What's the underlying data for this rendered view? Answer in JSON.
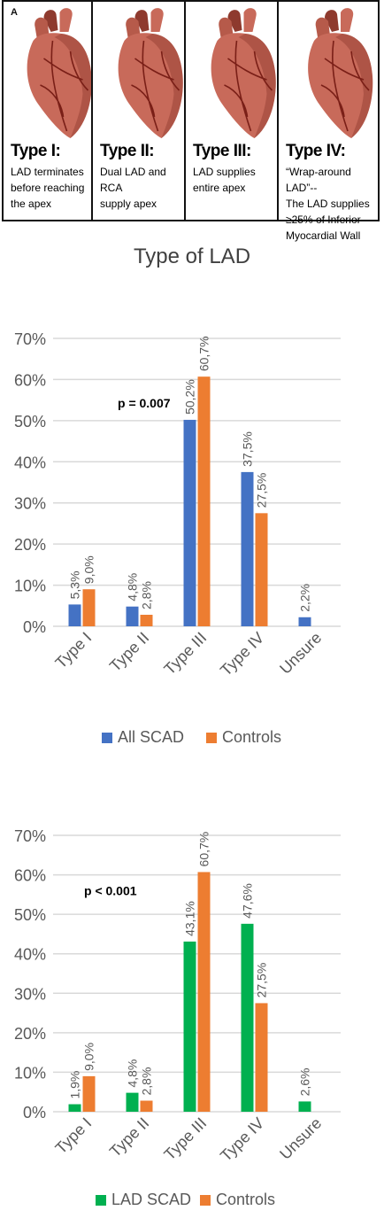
{
  "figure_label": "A",
  "lad_types": [
    {
      "title": "Type I:",
      "description": "LAD terminates\nbefore reaching\nthe apex"
    },
    {
      "title": "Type II:",
      "description": "Dual LAD and RCA\nsupply apex"
    },
    {
      "title": "Type III:",
      "description": "LAD supplies\nentire apex"
    },
    {
      "title": "Type IV:",
      "description": "“Wrap-around LAD”--\nThe LAD supplies\n≥25% of Inferior\nMyocardial Wall"
    }
  ],
  "colors": {
    "all_scad": "#4472C4",
    "lad_scad": "#00B050",
    "controls": "#ED7D31",
    "gridline": "#D9D9D9",
    "axis_text": "#595959",
    "heart_fill": "#C86A5A",
    "heart_dark": "#8E3A2E",
    "vessel": "#7A1F17"
  },
  "chart_data": [
    {
      "type": "bar",
      "title": "Type of LAD",
      "categories": [
        "Type I",
        "Type II",
        "Type III",
        "Type IV",
        "Unsure"
      ],
      "series": [
        {
          "name": "All SCAD",
          "values": [
            5.3,
            4.8,
            50.2,
            37.5,
            2.2
          ],
          "labels": [
            "5,3%",
            "4,8%",
            "50,2%",
            "37,5%",
            "2,2%"
          ]
        },
        {
          "name": "Controls",
          "values": [
            9.0,
            2.8,
            60.7,
            27.5,
            null
          ],
          "labels": [
            "9,0%",
            "2,8%",
            "60,7%",
            "27,5%",
            ""
          ]
        }
      ],
      "annotation": "p = 0.007",
      "yticks": [
        "0%",
        "10%",
        "20%",
        "30%",
        "40%",
        "50%",
        "60%",
        "70%"
      ],
      "ylim": [
        0,
        70
      ],
      "grid": true,
      "legend_position": "bottom"
    },
    {
      "type": "bar",
      "title": "",
      "categories": [
        "Type I",
        "Type II",
        "Type III",
        "Type IV",
        "Unsure"
      ],
      "series": [
        {
          "name": "LAD SCAD",
          "values": [
            1.9,
            4.8,
            43.1,
            47.6,
            2.6
          ],
          "labels": [
            "1,9%",
            "4,8%",
            "43,1%",
            "47,6%",
            "2,6%"
          ]
        },
        {
          "name": "Controls",
          "values": [
            9.0,
            2.8,
            60.7,
            27.5,
            null
          ],
          "labels": [
            "9,0%",
            "2,8%",
            "60,7%",
            "27,5%",
            ""
          ]
        }
      ],
      "annotation": "p < 0.001",
      "yticks": [
        "0%",
        "10%",
        "20%",
        "30%",
        "40%",
        "50%",
        "60%",
        "70%"
      ],
      "ylim": [
        0,
        70
      ],
      "grid": true,
      "legend_position": "bottom"
    }
  ]
}
